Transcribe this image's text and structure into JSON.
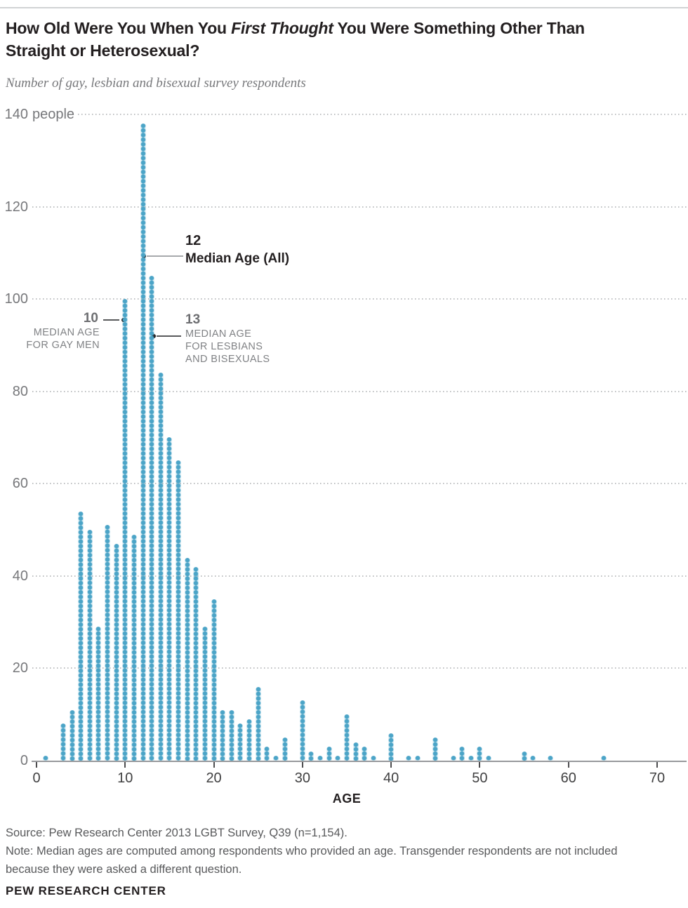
{
  "header": {
    "title_line1_pre": "How Old Were You When You ",
    "title_line1_italic": "First Thought",
    "title_line1_post": " You Were Something Other Than",
    "title_line2": "Straight or Heterosexual?",
    "subtitle": "Number of gay, lesbian and bisexual survey respondents"
  },
  "chart_data": {
    "type": "bar",
    "style": "dot-column-histogram",
    "title": "How Old Were You When You First Thought You Were Something Other Than Straight or Heterosexual?",
    "subtitle": "Number of gay, lesbian and bisexual survey respondents",
    "xlabel": "AGE",
    "ylabel": "people",
    "y_unit_label": "people",
    "bar_color": "#4BA4C7",
    "grid": true,
    "xlim": [
      0,
      73
    ],
    "ylim": [
      0,
      140
    ],
    "x_ticks": [
      0,
      10,
      20,
      30,
      40,
      50,
      60,
      70
    ],
    "y_ticks": [
      0,
      20,
      40,
      60,
      80,
      100,
      120,
      140
    ],
    "points": [
      [
        1,
        1
      ],
      [
        3,
        8
      ],
      [
        4,
        11
      ],
      [
        5,
        54
      ],
      [
        6,
        50
      ],
      [
        7,
        29
      ],
      [
        8,
        51
      ],
      [
        9,
        47
      ],
      [
        10,
        100
      ],
      [
        11,
        49
      ],
      [
        12,
        138
      ],
      [
        13,
        105
      ],
      [
        14,
        84
      ],
      [
        15,
        70
      ],
      [
        16,
        65
      ],
      [
        17,
        44
      ],
      [
        18,
        42
      ],
      [
        19,
        29
      ],
      [
        20,
        35
      ],
      [
        21,
        11
      ],
      [
        22,
        11
      ],
      [
        23,
        8
      ],
      [
        24,
        9
      ],
      [
        25,
        16
      ],
      [
        26,
        3
      ],
      [
        27,
        1
      ],
      [
        28,
        5
      ],
      [
        30,
        13
      ],
      [
        31,
        2
      ],
      [
        32,
        1
      ],
      [
        33,
        3
      ],
      [
        34,
        1
      ],
      [
        35,
        10
      ],
      [
        36,
        4
      ],
      [
        37,
        3
      ],
      [
        38,
        1
      ],
      [
        40,
        6
      ],
      [
        42,
        1
      ],
      [
        43,
        1
      ],
      [
        45,
        5
      ],
      [
        47,
        1
      ],
      [
        48,
        3
      ],
      [
        49,
        1
      ],
      [
        50,
        3
      ],
      [
        51,
        1
      ],
      [
        55,
        2
      ],
      [
        56,
        1
      ],
      [
        58,
        1
      ],
      [
        64,
        1
      ]
    ],
    "annotations": [
      {
        "age": 12,
        "number": "12",
        "label": "Median Age (All)"
      },
      {
        "age": 10,
        "number": "10",
        "label": "MEDIAN AGE FOR GAY MEN"
      },
      {
        "age": 13,
        "number": "13",
        "label": "MEDIAN AGE FOR LESBIANS AND BISEXUALS"
      }
    ]
  },
  "annotations": {
    "all": {
      "num": "12",
      "lbl": "Median Age (All)"
    },
    "gay": {
      "num": "10",
      "lbl1": "MEDIAN AGE",
      "lbl2": "FOR GAY MEN"
    },
    "lesb": {
      "num": "13",
      "lbl1": "MEDIAN AGE",
      "lbl2": "FOR LESBIANS",
      "lbl3": "AND BISEXUALS"
    }
  },
  "axis": {
    "y_top_label_num": "140",
    "y_top_label_unit": "people",
    "xaxis_title": "AGE"
  },
  "footer": {
    "source": "Source: Pew Research Center 2013 LGBT Survey, Q39 (n=1,154).",
    "note_line1": "Note: Median ages are computed among respondents who provided an age. Transgender respondents are not included",
    "note_line2": "because they were asked a different question.",
    "brand": "PEW RESEARCH CENTER"
  }
}
